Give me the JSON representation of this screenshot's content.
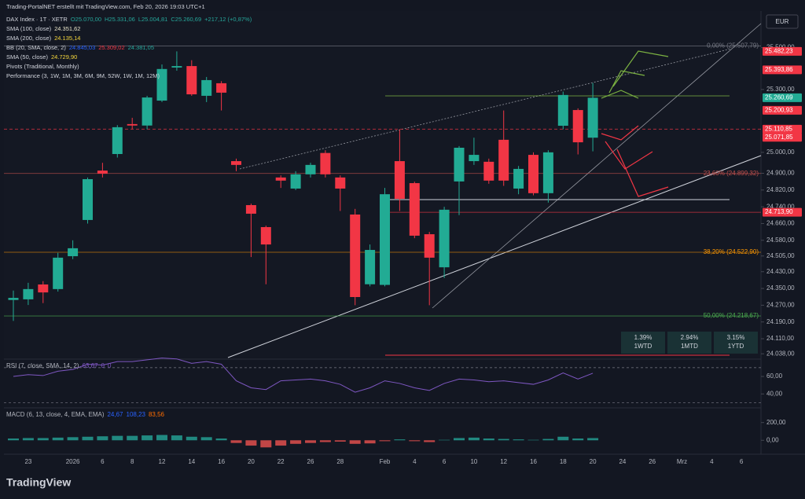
{
  "header": {
    "attribution": "Trading-PortalNET erstellt mit TradingView.com, Feb 20, 2026 19:03 UTC+1",
    "currency": "EUR",
    "logo": "TradingView",
    "legend": [
      {
        "label": "DAX Index · 1T · XETR",
        "values": [
          {
            "text": "O25.070,00",
            "color": "#26a69a"
          },
          {
            "text": "H25.331,06",
            "color": "#26a69a"
          },
          {
            "text": "L25.004,81",
            "color": "#26a69a"
          },
          {
            "text": "C25.260,69",
            "color": "#26a69a"
          },
          {
            "text": "+217,12 (+0,87%)",
            "color": "#26a69a"
          }
        ]
      },
      {
        "label": "SMA (100, close)",
        "values": [
          {
            "text": "24.351,62",
            "color": "#e8e4c8"
          }
        ]
      },
      {
        "label": "SMA (200, close)",
        "values": [
          {
            "text": "24.135,14",
            "color": "#f5d63c"
          }
        ]
      },
      {
        "label": "BB (20, SMA, close, 2)",
        "values": [
          {
            "text": "24.845,03",
            "color": "#2962ff"
          },
          {
            "text": "25.309,02",
            "color": "#f23645"
          },
          {
            "text": "24.381,05",
            "color": "#26a69a"
          }
        ]
      },
      {
        "label": "SMA (50, close)",
        "values": [
          {
            "text": "24.729,90",
            "color": "#f5d63c"
          }
        ]
      },
      {
        "label": "Pivots (Traditional, Monthly)",
        "values": []
      },
      {
        "label": "Performance (3, 1W, 1M, 3M, 6M, 9M, 52W, 1W, 1M, 12M)",
        "values": []
      }
    ],
    "performance": [
      {
        "value": "1.39%",
        "period": "1WTD"
      },
      {
        "value": "2.94%",
        "period": "1MTD"
      },
      {
        "value": "3.15%",
        "period": "1YTD"
      }
    ]
  },
  "chart_data": {
    "type": "candlestick",
    "up_color": "#22ab94",
    "down_color": "#f23645",
    "categories": [
      null,
      "23",
      null,
      null,
      "2026",
      null,
      "6",
      null,
      "8",
      null,
      "12",
      null,
      "14",
      null,
      "16",
      null,
      "20",
      null,
      "22",
      null,
      "26",
      null,
      "28",
      null,
      null,
      "Feb",
      null,
      "4",
      null,
      "6",
      null,
      "10",
      null,
      "12",
      null,
      "16",
      null,
      "18",
      null,
      "20",
      null,
      "24",
      null,
      "26",
      null,
      "Mrz",
      null,
      "4",
      null,
      "6"
    ],
    "open": [
      24295,
      24298,
      24369,
      24347,
      24504,
      24677,
      24913,
      24992,
      25135,
      25128,
      25247,
      25405,
      25412,
      25270,
      25330,
      24958,
      24748,
      24643,
      24880,
      24827,
      24895,
      24997,
      24880,
      24703,
      24370,
      24367,
      24958,
      24853,
      24609,
      24451,
      24861,
      24958,
      24955,
      25060,
      24827,
      24988,
      24805,
      25127,
      25202,
      25070,
      null,
      null,
      null,
      null,
      null,
      null,
      null,
      null,
      null,
      null
    ],
    "high": [
      24340,
      24377,
      24385,
      24520,
      24580,
      24880,
      24950,
      25130,
      25165,
      25270,
      25420,
      25482.23,
      25440,
      25360,
      25340,
      24970,
      24755,
      24650,
      24890,
      24910,
      24950,
      25010,
      24890,
      24730,
      24560,
      24830,
      25110,
      24860,
      24620,
      24740,
      25030,
      25070,
      24970,
      25200,
      24935,
      25000,
      25010,
      25290,
      25210,
      25331.06,
      null,
      null,
      null,
      null,
      null,
      null,
      null,
      null,
      null,
      null
    ],
    "low": [
      24195,
      24271,
      24280,
      24335,
      24490,
      24660,
      24880,
      24975,
      25110,
      25110,
      25240,
      25390,
      25270,
      25240,
      25200,
      24910,
      24500,
      24370,
      24830,
      24820,
      24880,
      24880,
      24720,
      24270,
      24360,
      24360,
      24720,
      24590,
      24270,
      24400,
      24700,
      24940,
      24850,
      24840,
      24800,
      24795,
      24760,
      25110,
      24990,
      25004.81,
      null,
      null,
      null,
      null,
      null,
      null,
      null,
      null,
      null,
      null
    ],
    "close": [
      24305,
      24347,
      24331,
      24497,
      24542,
      24872,
      24898,
      25120,
      25128,
      25262,
      25398,
      25412,
      25277,
      25345,
      25285,
      24940,
      24707,
      24560,
      24865,
      24895,
      24940,
      24895,
      24827,
      24309,
      24534,
      24800,
      24778,
      24602,
      24497,
      24726,
      25022,
      24988,
      24865,
      24865,
      24921,
      24805,
      25000,
      25274,
      25048,
      25260.69,
      null,
      null,
      null,
      null,
      null,
      null,
      null,
      null,
      null,
      null
    ],
    "ylim": [
      24020,
      25675
    ],
    "yticks": [
      {
        "value": 25500,
        "label": "25.500,00"
      },
      {
        "value": 25300,
        "label": "25.300,00"
      },
      {
        "value": 25000,
        "label": "25.000,00"
      },
      {
        "value": 24900,
        "label": "24.900,00"
      },
      {
        "value": 24820,
        "label": "24.820,00"
      },
      {
        "value": 24740,
        "label": "24.740,00"
      },
      {
        "value": 24660,
        "label": "24.660,00"
      },
      {
        "value": 24580,
        "label": "24.580,00"
      },
      {
        "value": 24505,
        "label": "24.505,00"
      },
      {
        "value": 24430,
        "label": "24.430,00"
      },
      {
        "value": 24350,
        "label": "24.350,00"
      },
      {
        "value": 24270,
        "label": "24.270,00"
      },
      {
        "value": 24190,
        "label": "24.190,00"
      },
      {
        "value": 24110,
        "label": "24.110,00"
      },
      {
        "value": 24038,
        "label": "24.038,00"
      }
    ],
    "price_tags": [
      {
        "value": 25482.23,
        "label": "25.482,23",
        "color": "#f23645"
      },
      {
        "value": 25393.86,
        "label": "25.393,86",
        "color": "#f23645"
      },
      {
        "value": 25260.69,
        "label": "25.260,69",
        "color": "#22ab94"
      },
      {
        "value": 25200.93,
        "label": "25.200,93",
        "color": "#f23645"
      },
      {
        "value": 25110.85,
        "label": "25.110,85",
        "color": "#f23645",
        "line": "dashed"
      },
      {
        "value": 25071.85,
        "label": "25.071,85",
        "color": "#f23645"
      },
      {
        "value": 24713.9,
        "label": "24.713,90",
        "color": "#f23645",
        "line": "solid"
      }
    ],
    "fib_levels": [
      {
        "value": 25507.79,
        "label": "0,00% (25.507,79)",
        "color": "#787b86"
      },
      {
        "value": 24899.32,
        "label": "23,60% (24.899,32)",
        "color": "#c0504d"
      },
      {
        "value": 24522.9,
        "label": "38,20% (24.522,90)",
        "color": "#ff9800"
      },
      {
        "value": 24218.67,
        "label": "50,00% (24.218,67)",
        "color": "#4caf50"
      }
    ],
    "rsi": {
      "title": "RSI (7, close, SMA, 14, 2)",
      "legend_values": [
        "63,67",
        "0",
        "0"
      ],
      "color": "#7e57c2",
      "values": [
        60,
        62,
        61,
        66,
        68,
        74,
        73,
        77,
        77,
        79,
        81,
        80,
        75,
        77,
        74,
        55,
        47,
        45,
        55,
        56,
        57,
        55,
        51,
        42,
        47,
        55,
        52,
        47,
        44,
        52,
        57,
        56,
        54,
        55,
        53,
        51,
        56,
        64,
        57,
        63.67,
        null,
        null,
        null,
        null,
        null,
        null,
        null,
        null,
        null,
        null
      ],
      "levels": [
        70,
        30
      ],
      "ylim": [
        25,
        78
      ],
      "yticks": [
        {
          "value": 60,
          "label": "60,00"
        },
        {
          "value": 40,
          "label": "40,00"
        }
      ]
    },
    "macd": {
      "title": "MACD (6, 13, close, 4, EMA, EMA)",
      "legend_values": [
        {
          "text": "24,67",
          "color": "#2962ff"
        },
        {
          "text": "108,23",
          "color": "#2962ff"
        },
        {
          "text": "83,56",
          "color": "#ff6d00"
        }
      ],
      "up_color": "#26a69a",
      "down_color": "#ef5350",
      "values": [
        20,
        25,
        25,
        30,
        35,
        40,
        45,
        50,
        50,
        55,
        60,
        55,
        40,
        35,
        20,
        -30,
        -60,
        -80,
        -60,
        -40,
        -30,
        -20,
        -15,
        -40,
        -35,
        -10,
        10,
        -10,
        -20,
        5,
        25,
        30,
        20,
        15,
        10,
        5,
        15,
        40,
        20,
        24.67,
        null,
        null,
        null,
        null,
        null,
        null,
        null,
        null,
        null,
        null
      ],
      "ylim": [
        -157,
        348
      ],
      "yticks": [
        {
          "value": 200,
          "label": "200,00"
        },
        {
          "value": 0,
          "label": "0,00"
        }
      ]
    }
  }
}
